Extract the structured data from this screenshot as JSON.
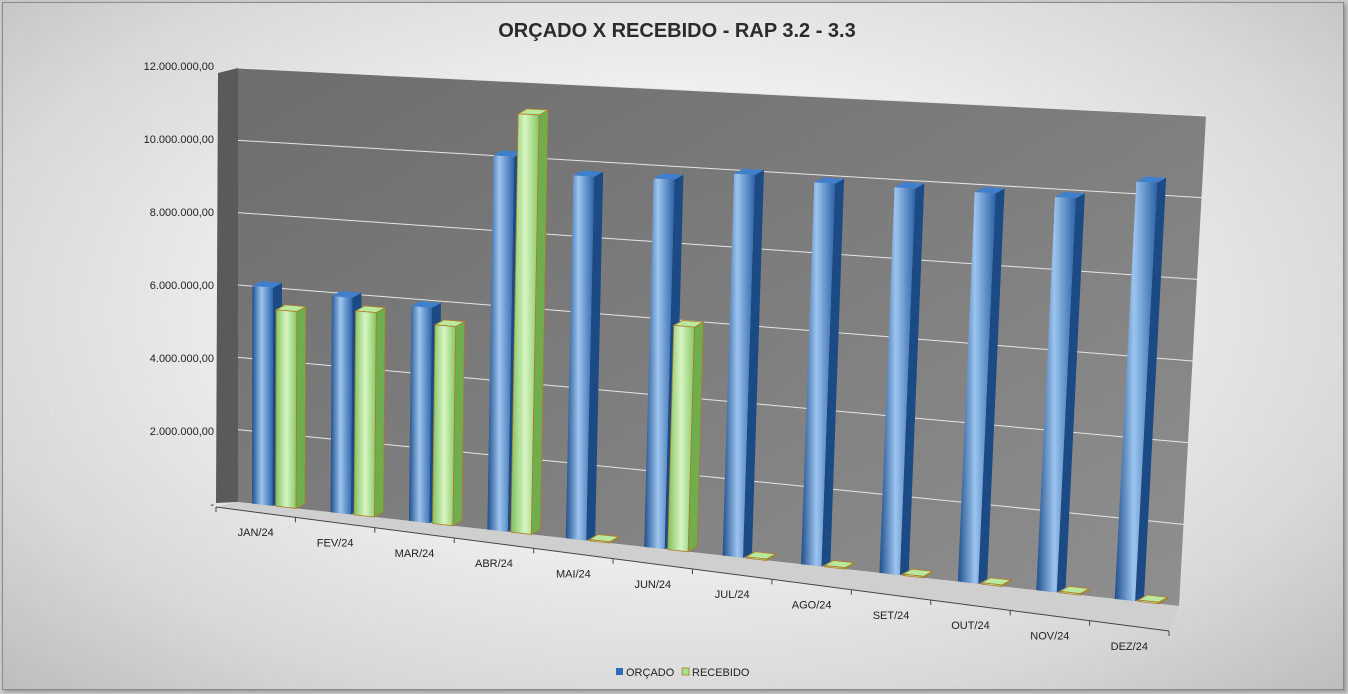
{
  "chart_data": {
    "type": "bar",
    "title": "ORÇADO X RECEBIDO - RAP 3.2 - 3.3",
    "xlabel": "",
    "ylabel": "",
    "ylim": [
      0,
      12000000
    ],
    "y_tick_labels": [
      "-",
      "2.000.000,00",
      "4.000.000,00",
      "6.000.000,00",
      "8.000.000,00",
      "10.000.000,00",
      "12.000.000,00"
    ],
    "categories": [
      "JAN/24",
      "FEV/24",
      "MAR/24",
      "ABR/24",
      "MAI/24",
      "JUN/24",
      "JUL/24",
      "AGO/24",
      "SET/24",
      "OUT/24",
      "NOV/24",
      "DEZ/24"
    ],
    "series": [
      {
        "name": "ORÇADO",
        "color": "#2e6db4",
        "values": [
          6000000,
          5900000,
          5800000,
          10000000,
          9600000,
          9650000,
          9900000,
          9800000,
          9800000,
          9800000,
          9800000,
          10300000
        ]
      },
      {
        "name": "RECEBIDO",
        "color": "#a6e08a",
        "values": [
          5400000,
          5550000,
          5350000,
          11150000,
          0,
          5850000,
          0,
          0,
          0,
          0,
          0,
          0
        ]
      }
    ],
    "grid": true,
    "legend": "bottom-center",
    "style": "3d-clustered-column"
  }
}
